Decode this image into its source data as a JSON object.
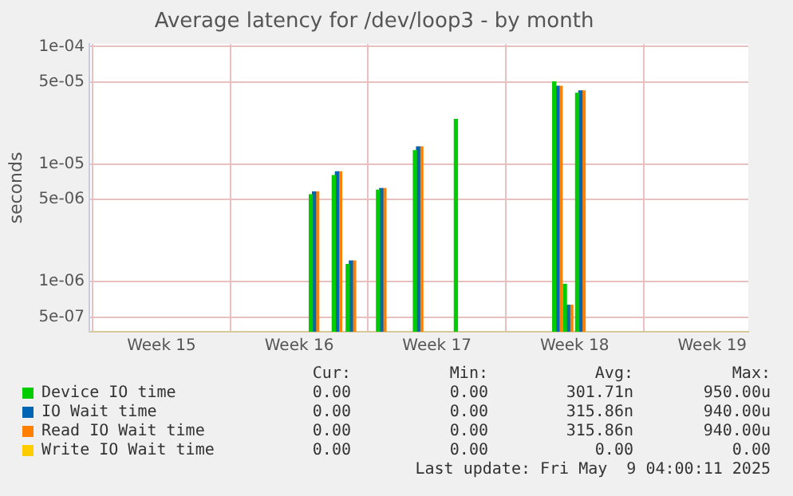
{
  "chart_data": {
    "type": "bar",
    "title": "Average latency for /dev/loop3 - by month",
    "ylabel": "seconds",
    "x": [
      "2025-04-18T08:00",
      "2025-04-19T12:00",
      "2025-04-20T05:00",
      "2025-04-21T18:00",
      "2025-04-23T15:00",
      "2025-04-25T17:00",
      "2025-04-30T17:00",
      "2025-05-01T06:00",
      "2025-05-01T21:00"
    ],
    "series": [
      {
        "name": "Device IO time",
        "color": "#00cc00",
        "values": [
          5.5e-06,
          8e-06,
          1.4e-06,
          6e-06,
          1.3e-05,
          2.4e-05,
          5e-05,
          9.5e-07,
          4e-05
        ]
      },
      {
        "name": "IO Wait time",
        "color": "#0066b3",
        "values": [
          5.8e-06,
          8.6e-06,
          1.5e-06,
          6.2e-06,
          1.4e-05,
          null,
          4.6e-05,
          6.3e-07,
          4.2e-05
        ]
      },
      {
        "name": "Read IO Wait time",
        "color": "#ff8000",
        "values": [
          5.8e-06,
          8.6e-06,
          1.5e-06,
          6.2e-06,
          1.4e-05,
          null,
          4.6e-05,
          6.3e-07,
          4.2e-05
        ]
      },
      {
        "name": "Write IO Wait time",
        "color": "#ffcc00",
        "values": [
          null,
          null,
          null,
          null,
          null,
          null,
          null,
          null,
          null
        ]
      }
    ],
    "log": "y",
    "ylim": [
      3.75e-07,
      0.000105
    ],
    "yticks": [
      {
        "value": 0.0001,
        "label": "1e-04"
      },
      {
        "value": 5e-05,
        "label": "5e-05"
      },
      {
        "value": 1e-05,
        "label": "1e-05"
      },
      {
        "value": 5e-06,
        "label": "5e-06"
      },
      {
        "value": 1e-06,
        "label": "1e-06"
      },
      {
        "value": 5e-07,
        "label": "5e-07"
      }
    ],
    "xlim": [
      "2025-04-06T20:00",
      "2025-05-10T08:00"
    ],
    "xticks": [
      {
        "value": "2025-04-10T12:00",
        "label": "Week 15"
      },
      {
        "value": "2025-04-17T12:00",
        "label": "Week 16"
      },
      {
        "value": "2025-04-24T12:00",
        "label": "Week 17"
      },
      {
        "value": "2025-05-01T12:00",
        "label": "Week 18"
      },
      {
        "value": "2025-05-08T12:00",
        "label": "Week 19"
      }
    ],
    "grid": true,
    "legend": "bottom",
    "annotations": [
      "Cur:",
      "Min:",
      "Avg:",
      "Max:",
      "0.00",
      "0.00",
      "301.71n",
      "950.00u",
      "0.00",
      "0.00",
      "315.86n",
      "940.00u",
      "0.00",
      "0.00",
      "315.86n",
      "940.00u",
      "0.00",
      "0.00",
      "0.00",
      "0.00",
      "Last update: Fri May  9 04:00:11 2025"
    ]
  }
}
